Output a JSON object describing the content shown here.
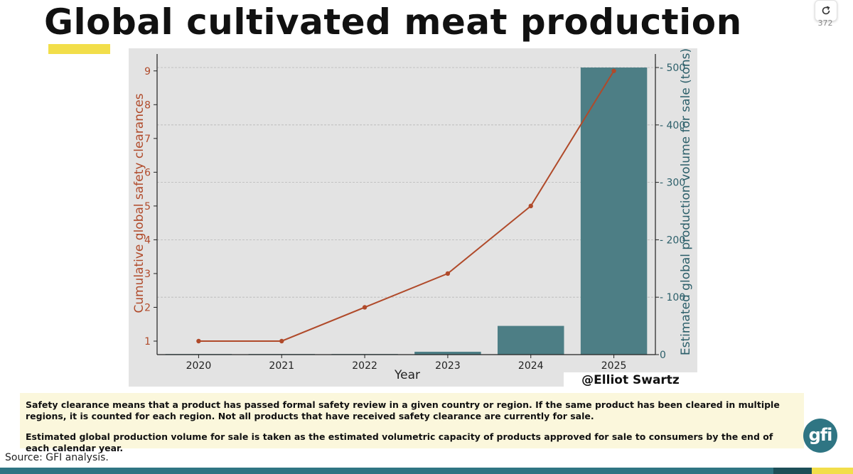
{
  "slide": {
    "title": "Global cultivated meat production",
    "counter": "372",
    "credit": "@Elliot Swartz",
    "notes": [
      "Safety clearance means that a product has passed formal safety review in a given country or region. If the same product has been cleared in multiple regions, it is counted for each region. Not all products that have received safety clearance are currently for sale.",
      "Estimated global production volume for sale is taken as the estimated volumetric capacity of products approved for sale to consumers by the end of each calendar year."
    ],
    "source": "Source: GFI analysis.",
    "logo_text": "gfi",
    "icons": {
      "refresh": "refresh-icon",
      "logo": "gfi-logo"
    }
  },
  "colors": {
    "line": "#b04a2a",
    "bar": "#4d7e85",
    "plot_bg": "#e3e3e3",
    "right_axis": "#2c5f6a",
    "highlight": "#f2de4a"
  },
  "chart_data": {
    "type": "bar+line",
    "categories": [
      "2020",
      "2021",
      "2022",
      "2023",
      "2024",
      "2025"
    ],
    "xlabel": "Year",
    "series": [
      {
        "name": "Cumulative global safety clearances",
        "type": "line",
        "axis": "left",
        "values": [
          1,
          1,
          2,
          3,
          5,
          9
        ]
      },
      {
        "name": "Estimated global production volume for sale (tons)",
        "type": "bar",
        "axis": "right",
        "values": [
          1,
          1,
          1,
          5,
          50,
          500
        ]
      }
    ],
    "y_left": {
      "label": "Cumulative global safety clearances",
      "ticks": [
        1,
        2,
        3,
        4,
        5,
        6,
        7,
        8,
        9
      ],
      "lim": [
        0.6,
        9.5
      ]
    },
    "y_right": {
      "label": "Estimated global production volume for sale (tons)",
      "ticks": [
        0,
        100,
        200,
        300,
        400,
        500
      ],
      "lim": [
        0,
        500
      ]
    },
    "grid": true,
    "legend": "none"
  }
}
